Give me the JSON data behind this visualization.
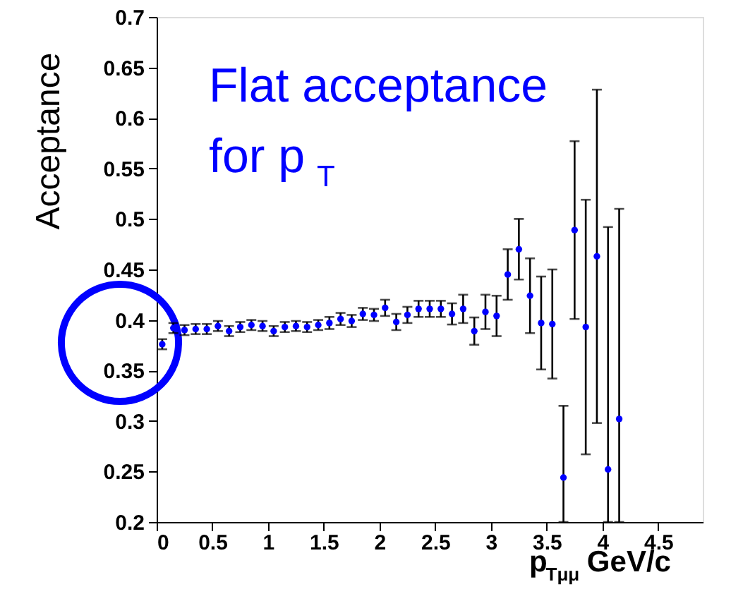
{
  "chart_data": {
    "type": "scatter",
    "xlabel": "p$_{Tμμ}$ GeV/c",
    "ylabel": "Acceptance",
    "annotations": [
      "Flat acceptance\nfor p$_{T}$"
    ],
    "x": [
      0.05,
      0.15,
      0.25,
      0.35,
      0.45,
      0.55,
      0.65,
      0.75,
      0.85,
      0.95,
      1.05,
      1.15,
      1.25,
      1.35,
      1.45,
      1.55,
      1.65,
      1.75,
      1.85,
      1.95,
      2.05,
      2.15,
      2.25,
      2.35,
      2.45,
      2.55,
      2.65,
      2.75,
      2.85,
      2.95,
      3.05,
      3.15,
      3.25,
      3.35,
      3.45,
      3.55,
      3.65,
      3.75,
      3.85,
      3.95,
      4.05,
      4.15
    ],
    "series": [
      {
        "color": "#0000ff",
        "values": [
          0.376,
          0.392,
          0.39,
          0.391,
          0.391,
          0.394,
          0.389,
          0.393,
          0.395,
          0.394,
          0.389,
          0.393,
          0.394,
          0.393,
          0.395,
          0.397,
          0.401,
          0.399,
          0.406,
          0.405,
          0.412,
          0.398,
          0.405,
          0.411,
          0.411,
          0.411,
          0.406,
          0.411,
          0.389,
          0.408,
          0.404,
          0.445,
          0.47,
          0.424,
          0.397,
          0.396,
          0.244,
          0.489,
          0.393,
          0.463,
          0.252,
          0.302
        ],
        "errors": [
          0.005,
          0.005,
          0.005,
          0.005,
          0.005,
          0.005,
          0.005,
          0.005,
          0.005,
          0.005,
          0.005,
          0.005,
          0.005,
          0.005,
          0.005,
          0.006,
          0.006,
          0.006,
          0.006,
          0.006,
          0.008,
          0.008,
          0.008,
          0.008,
          0.008,
          0.008,
          0.0105,
          0.014,
          0.0135,
          0.017,
          0.02,
          0.025,
          0.03,
          0.037,
          0.046,
          0.054,
          [
            0.2,
            0.315
          ],
          0.088,
          0.126,
          0.165,
          [
            0.2,
            0.492
          ],
          [
            0.2,
            0.51
          ]
        ]
      }
    ],
    "xlim": [
      0,
      4.9
    ],
    "xticks": [
      0,
      0.5,
      1,
      1.5,
      2,
      2.5,
      3,
      3.5,
      4,
      4.5
    ],
    "ylim": [
      0.2,
      0.7
    ],
    "yticks": [
      0.2,
      0.25,
      0.3,
      0.35,
      0.4,
      0.45,
      0.5,
      0.55,
      0.6,
      0.65,
      0.7
    ],
    "grid": false,
    "legend": false,
    "marker": "circle"
  }
}
